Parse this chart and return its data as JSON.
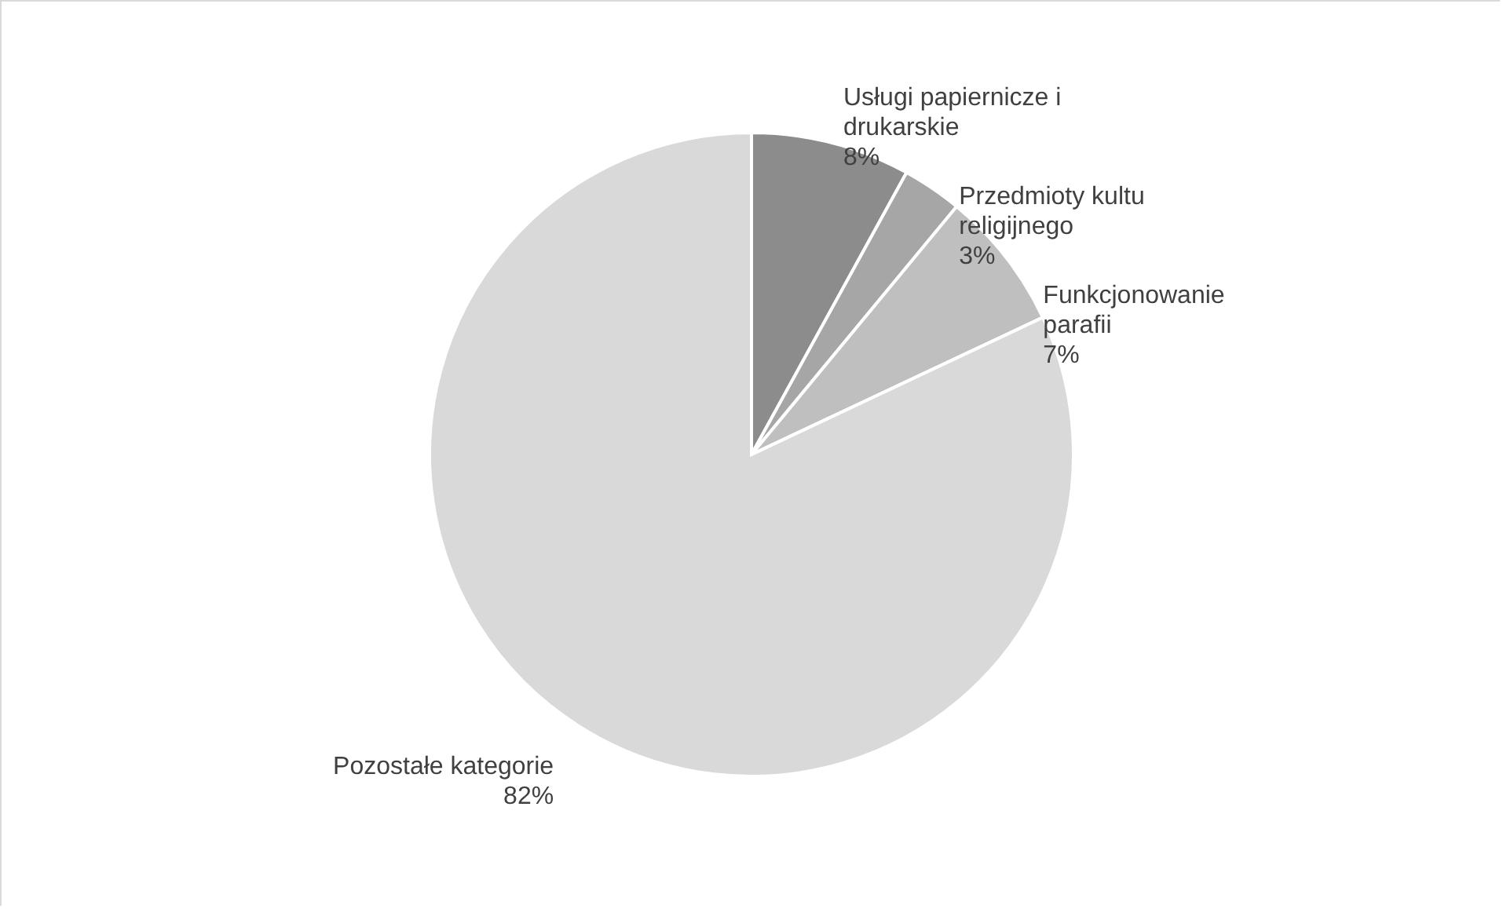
{
  "chart_data": {
    "type": "pie",
    "categories": [
      "Usługi papiernicze i drukarskie",
      "Przedmioty kultu religijnego",
      "Funkcjonowanie parafii",
      "Pozostałe kategorie"
    ],
    "values": [
      8,
      3,
      7,
      82
    ],
    "colors": [
      "#8c8c8c",
      "#a6a6a6",
      "#bfbfbf",
      "#d9d9d9"
    ],
    "value_labels": [
      "8%",
      "3%",
      "7%",
      "82%"
    ]
  }
}
